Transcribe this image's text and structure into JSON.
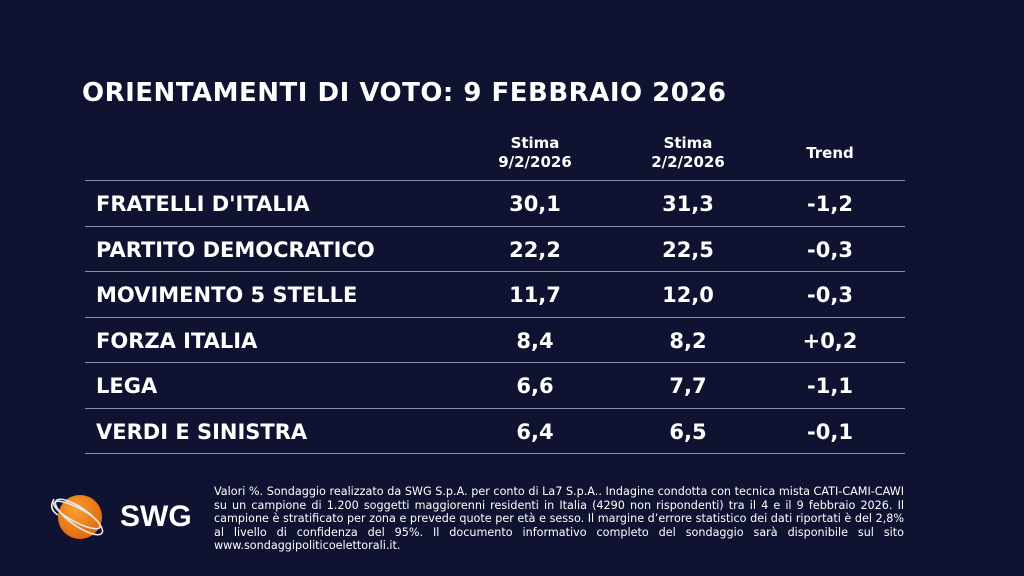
{
  "title": "ORIENTAMENTI DI VOTO: 9 FEBBRAIO 2026",
  "columns": [
    {
      "line1": "Stima",
      "line2": "9/2/2026"
    },
    {
      "line1": "Stima",
      "line2": "2/2/2026"
    },
    {
      "line1": "Trend",
      "line2": ""
    }
  ],
  "rows": [
    {
      "party": "FRATELLI D'ITALIA",
      "current": "30,1",
      "previous": "31,3",
      "trend": "-1,2"
    },
    {
      "party": "PARTITO DEMOCRATICO",
      "current": "22,2",
      "previous": "22,5",
      "trend": "-0,3"
    },
    {
      "party": "MOVIMENTO 5 STELLE",
      "current": "11,7",
      "previous": "12,0",
      "trend": "-0,3"
    },
    {
      "party": "FORZA ITALIA",
      "current": "8,4",
      "previous": "8,2",
      "trend": "+0,2"
    },
    {
      "party": "LEGA",
      "current": "6,6",
      "previous": "7,7",
      "trend": "-1,1"
    },
    {
      "party": "VERDI E SINISTRA",
      "current": "6,4",
      "previous": "6,5",
      "trend": "-0,1"
    }
  ],
  "footnote": "Valori %. Sondaggio realizzato da SWG S.p.A. per conto di La7 S.p.A.. Indagine condotta con tecnica mista CATI-CAMI-CAWI su un campione di 1.200 soggetti maggiorenni residenti in Italia (4290 non rispondenti) tra il 4 e il 9 febbraio 2026. Il campione è stratificato per zona e prevede quote per età e sesso. Il margine d’errore statistico dei dati riportati è del 2,8% al livello di confidenza del 95%. Il documento informativo completo del sondaggio sarà disponibile sul sito www.sondaggipoliticoelettorali.it.",
  "logo": {
    "text": "SWG",
    "icon": "orange-globe-icon",
    "color": "#f28a1c"
  },
  "colors": {
    "background": "#0f1230",
    "text": "#ffffff",
    "divider": "#8a8ea8"
  }
}
